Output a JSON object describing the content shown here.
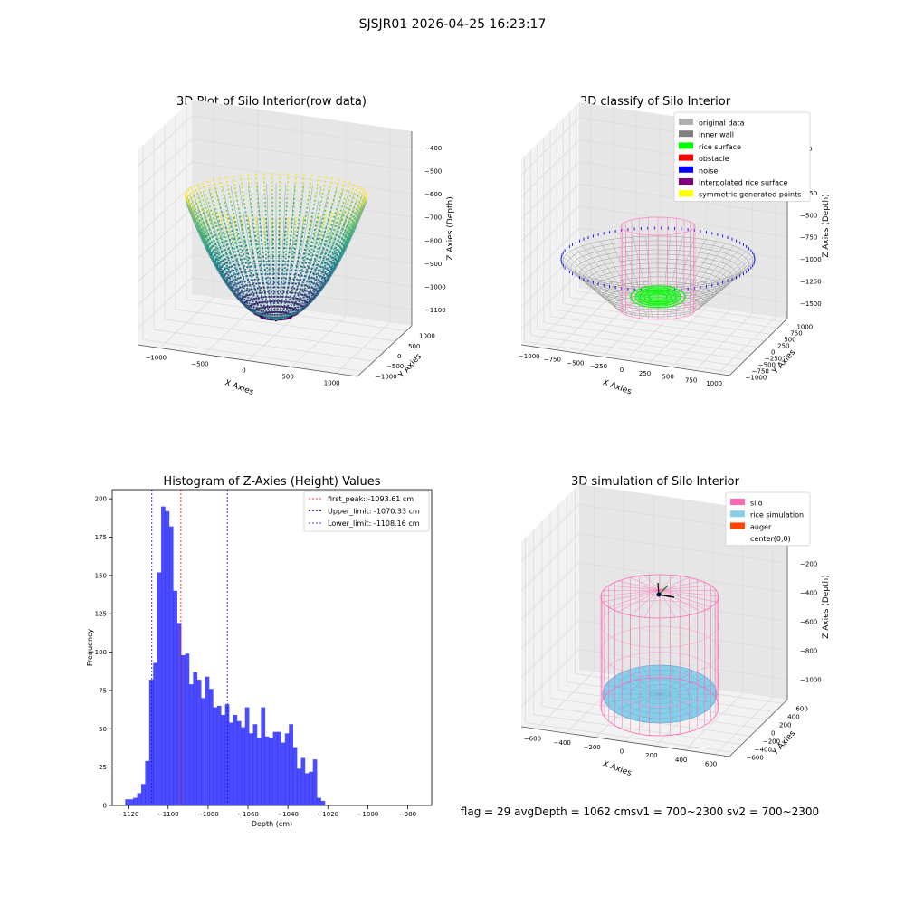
{
  "figure": {
    "suptitle": "SJSJR01 2026-04-25 16:23:17",
    "footer": "flag = 29  avgDepth = 1062 cmsv1 = 700~2300  sv2 = 700~2300"
  },
  "chart_data": [
    {
      "type": "scatter",
      "projection": "3d",
      "title": "3D Plot of Silo Interior(row data)",
      "xlabel": "X Axies",
      "ylabel": "Y Axies",
      "zlabel": "Z Axies (Depth)",
      "xticks": [
        "−1000",
        "−500",
        "0",
        "500",
        "1000"
      ],
      "yticks": [
        "−1000",
        "−500",
        "0",
        "500",
        "1000"
      ],
      "zticks": [
        "−400",
        "−500",
        "−600",
        "−700",
        "−800",
        "−900",
        "−1000",
        "−1100"
      ],
      "zlim": [
        -1130,
        -380
      ],
      "colormap": "viridis",
      "shape": "bowl"
    },
    {
      "type": "scatter",
      "projection": "3d",
      "title": "3D classify of Silo Interior",
      "xlabel": "X Axies",
      "ylabel": "Y Axies",
      "zlabel": "Z Axies (Depth)",
      "xticks": [
        "−1000",
        "−750",
        "−500",
        "−250",
        "0",
        "250",
        "500",
        "750",
        "1000"
      ],
      "yticks": [
        "−1000",
        "−750",
        "−500",
        "−250",
        "0",
        "250",
        "500",
        "750",
        "1000"
      ],
      "zticks": [
        "250",
        "0",
        "−250",
        "−500",
        "−750",
        "−1000",
        "−1250",
        "−1500"
      ],
      "legend_loc": "upper right",
      "legend": [
        {
          "label": "original data",
          "color": "#b0b0b0"
        },
        {
          "label": "inner wall",
          "color": "#808080"
        },
        {
          "label": "rice surface",
          "color": "#00ff00"
        },
        {
          "label": "obstacle",
          "color": "#ff0000"
        },
        {
          "label": "noise",
          "color": "#0000ff"
        },
        {
          "label": "interpolated rice surface",
          "color": "#800080"
        },
        {
          "label": "symmetric generated points",
          "color": "#ffff00"
        }
      ]
    },
    {
      "type": "bar",
      "subtype": "histogram",
      "title": "Histogram of Z-Axies (Height) Values",
      "xlabel": "Depth (cm)",
      "ylabel": "Frequency",
      "xlim": [
        -1128,
        -968
      ],
      "ylim": [
        0,
        206
      ],
      "xticks": [
        -1120,
        -1100,
        -1080,
        -1060,
        -1040,
        -1020,
        -1000,
        -980
      ],
      "xtick_labels": [
        "−1120",
        "−1100",
        "−1080",
        "−1060",
        "−1040",
        "−1020",
        "−1000",
        "−980"
      ],
      "yticks": [
        0,
        25,
        50,
        75,
        100,
        125,
        150,
        175,
        200
      ],
      "bin_start": -1121.5,
      "bin_width": 2.0,
      "values": [
        4,
        4,
        5,
        8,
        14,
        29,
        82,
        93,
        152,
        195,
        192,
        182,
        140,
        119,
        98,
        99,
        79,
        87,
        82,
        70,
        84,
        76,
        64,
        65,
        59,
        66,
        54,
        59,
        55,
        51,
        64,
        47,
        53,
        44,
        64,
        45,
        44,
        48,
        48,
        41,
        47,
        53,
        38,
        24,
        31,
        21,
        22,
        30,
        5,
        3
      ],
      "bar_color": "#0000ff",
      "vlines": [
        {
          "label": "first_peak: -1093.61 cm",
          "x": -1093.61,
          "color": "#ff0000"
        },
        {
          "label": "Upper_limit: -1070.33 cm",
          "x": -1070.33,
          "color": "#0000ff"
        },
        {
          "label": "Lower_limit: -1108.16 cm",
          "x": -1108.16,
          "color": "#0000ff"
        }
      ],
      "legend_loc": "upper right"
    },
    {
      "type": "scatter",
      "projection": "3d",
      "title": "3D simulation of Silo Interior",
      "xlabel": "X Axies",
      "ylabel": "Y Axies",
      "zlabel": "Z Axies (Depth)",
      "xticks": [
        "−600",
        "−400",
        "−200",
        "0",
        "200",
        "400",
        "600"
      ],
      "yticks": [
        "−600",
        "−400",
        "−200",
        "0",
        "200",
        "400",
        "600"
      ],
      "zticks": [
        "0",
        "−200",
        "−400",
        "−600",
        "−800",
        "−1000"
      ],
      "legend_loc": "upper right",
      "legend": [
        {
          "label": "silo",
          "color": "#ff69b4"
        },
        {
          "label": "rice simulation",
          "color": "#87ceeb"
        },
        {
          "label": "auger",
          "color": "#ff4500"
        },
        {
          "label": "center(0,0)",
          "color": ""
        }
      ]
    }
  ]
}
